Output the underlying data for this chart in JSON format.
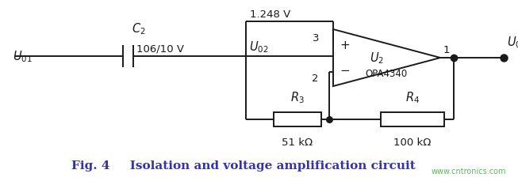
{
  "bg_color": "#ffffff",
  "line_color": "#1a1a1a",
  "fig_caption_bold": "Fig. 4",
  "fig_caption_normal": "    Isolation and voltage amplification circuit",
  "watermark": "www.cntronics.com",
  "caption_color": "#3333aa",
  "watermark_color": "#44aa44"
}
